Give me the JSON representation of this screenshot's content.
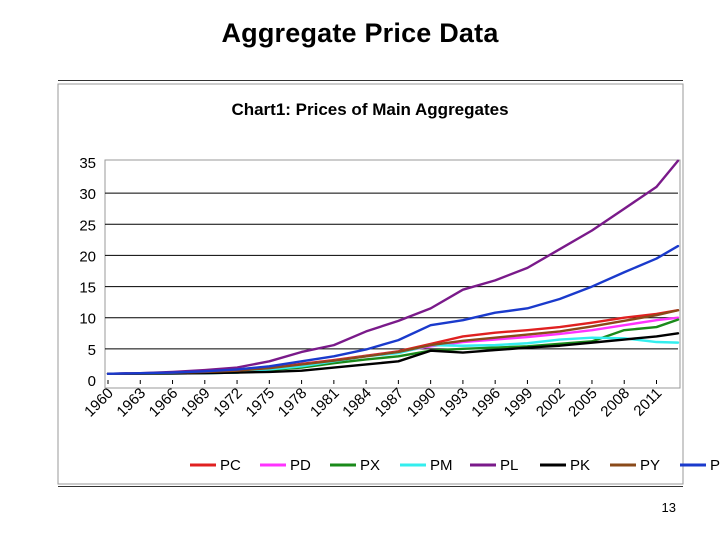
{
  "slide": {
    "title": "Aggregate Price Data",
    "page_number": "13"
  },
  "chart_data": {
    "type": "line",
    "title": "Chart1: Prices of Main Aggregates",
    "xlabel": "",
    "ylabel": "",
    "ylim": [
      0,
      35
    ],
    "yticks": [
      0,
      5,
      10,
      15,
      20,
      25,
      30,
      35
    ],
    "xlim": [
      1960,
      2013
    ],
    "xticks": [
      "1960",
      "1963",
      "1966",
      "1969",
      "1972",
      "1975",
      "1978",
      "1981",
      "1984",
      "1987",
      "1990",
      "1993",
      "1996",
      "1999",
      "2002",
      "2005",
      "2008",
      "2011"
    ],
    "grid": "horizontal",
    "legend_position": "bottom",
    "x": [
      1960,
      1963,
      1966,
      1969,
      1972,
      1975,
      1978,
      1981,
      1984,
      1987,
      1990,
      1993,
      1996,
      1999,
      2002,
      2005,
      2008,
      2011,
      2013
    ],
    "series": [
      {
        "name": "PC",
        "color": "#e02020",
        "values": [
          1.0,
          1.05,
          1.15,
          1.3,
          1.5,
          2.0,
          2.6,
          3.2,
          3.9,
          4.6,
          5.8,
          7.0,
          7.6,
          8.0,
          8.5,
          9.2,
          10.0,
          10.6,
          11.2
        ]
      },
      {
        "name": "PD",
        "color": "#ff33ff",
        "values": [
          1.0,
          1.05,
          1.15,
          1.3,
          1.5,
          1.9,
          2.5,
          3.1,
          3.8,
          4.5,
          5.4,
          6.1,
          6.5,
          6.9,
          7.4,
          8.0,
          8.8,
          9.6,
          10.0
        ]
      },
      {
        "name": "PX",
        "color": "#1a8a1a",
        "values": [
          1.0,
          1.02,
          1.05,
          1.1,
          1.2,
          1.6,
          2.0,
          2.7,
          3.3,
          3.8,
          4.7,
          5.0,
          5.2,
          5.4,
          5.8,
          6.2,
          8.0,
          8.5,
          9.7
        ]
      },
      {
        "name": "PM",
        "color": "#33eeee",
        "values": [
          1.0,
          1.02,
          1.05,
          1.1,
          1.2,
          1.7,
          2.2,
          3.0,
          3.8,
          4.3,
          5.6,
          5.5,
          5.6,
          5.9,
          6.5,
          6.8,
          6.7,
          6.1,
          6.0
        ]
      },
      {
        "name": "PL",
        "color": "#7a1a8a",
        "values": [
          1.0,
          1.1,
          1.3,
          1.6,
          2.0,
          3.0,
          4.5,
          5.6,
          7.8,
          9.5,
          11.5,
          14.5,
          16.0,
          18.0,
          21.0,
          24.0,
          27.5,
          31.0,
          35.2
        ]
      },
      {
        "name": "PK",
        "color": "#000000",
        "values": [
          1.0,
          1.02,
          1.05,
          1.1,
          1.2,
          1.3,
          1.5,
          2.0,
          2.5,
          3.0,
          4.7,
          4.4,
          4.8,
          5.2,
          5.5,
          6.0,
          6.5,
          7.0,
          7.5
        ]
      },
      {
        "name": "PY",
        "color": "#8a4a1a",
        "values": [
          1.0,
          1.05,
          1.15,
          1.3,
          1.5,
          1.9,
          2.5,
          3.1,
          3.8,
          4.5,
          5.6,
          6.3,
          6.8,
          7.3,
          7.8,
          8.6,
          9.5,
          10.4,
          11.2
        ]
      },
      {
        "name": "PZ",
        "color": "#1a3acc",
        "values": [
          1.0,
          1.1,
          1.2,
          1.4,
          1.7,
          2.2,
          3.0,
          3.8,
          4.9,
          6.4,
          8.8,
          9.6,
          10.8,
          11.5,
          13.0,
          15.0,
          17.3,
          19.5,
          21.5
        ]
      }
    ]
  }
}
